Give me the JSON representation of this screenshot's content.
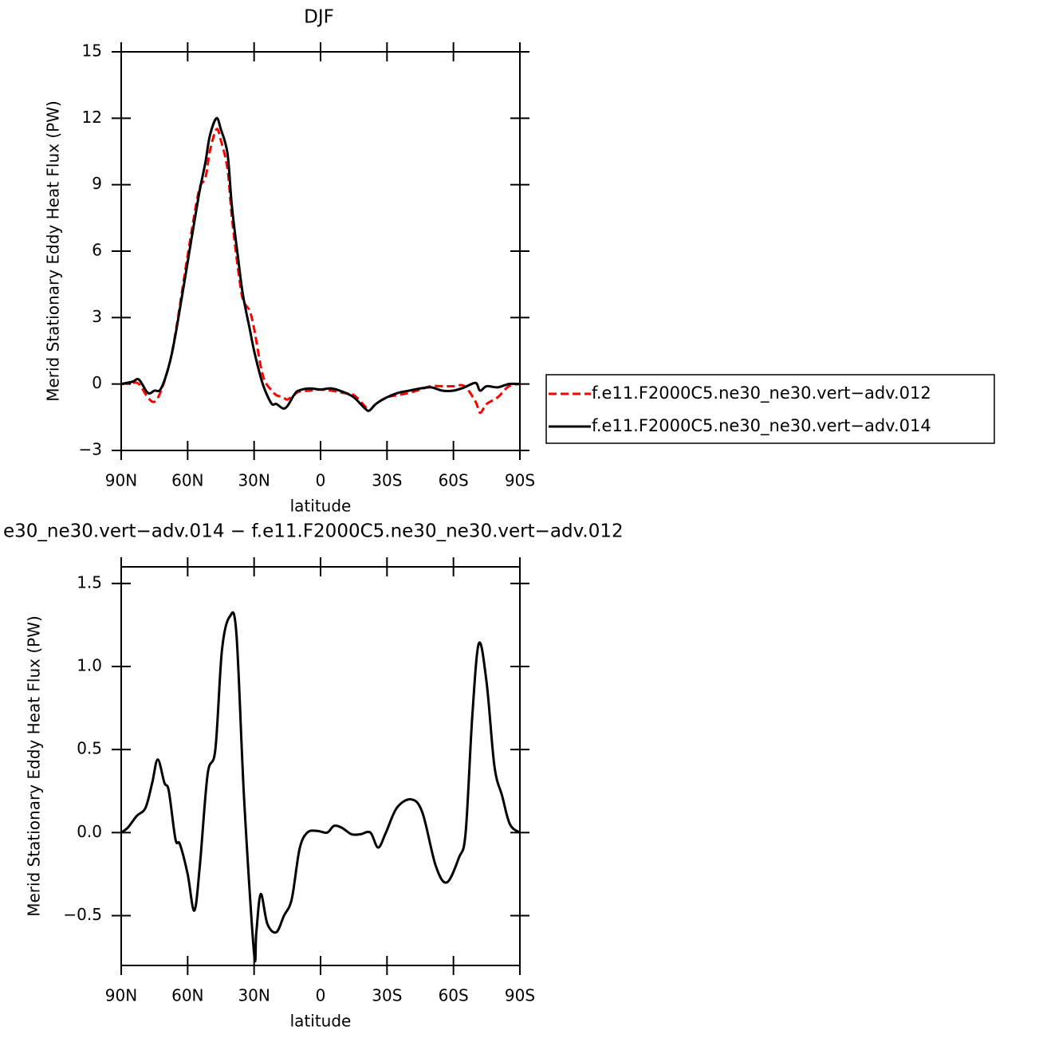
{
  "chart_data": [
    {
      "type": "line",
      "title": "DJF",
      "x_label": "latitude",
      "y_label": "Merid Stationary Eddy Heat Flux (PW)",
      "x": [
        90,
        85,
        82,
        78,
        75,
        72,
        68,
        65,
        60,
        55,
        52,
        50,
        47,
        45,
        42,
        40,
        37,
        35,
        32,
        30,
        27,
        25,
        22,
        20,
        17,
        15,
        12,
        10,
        5,
        0,
        -5,
        -10,
        -15,
        -20,
        -22,
        -25,
        -30,
        -35,
        -40,
        -45,
        -50,
        -55,
        -60,
        -65,
        -70,
        -72,
        -75,
        -80,
        -85,
        -90
      ],
      "series": [
        {
          "name": "f.e11.F2000C5.ne30_ne30.vert−adv.012",
          "color": "#ff0000",
          "dash": true,
          "values": [
            0,
            0.05,
            0.0,
            -0.6,
            -0.8,
            -0.3,
            1.0,
            2.6,
            5.8,
            8.7,
            9.3,
            10.5,
            11.5,
            11.0,
            9.7,
            7.5,
            5.0,
            3.8,
            3.3,
            2.5,
            0.8,
            0.1,
            -0.3,
            -0.5,
            -0.6,
            -0.7,
            -0.5,
            -0.35,
            -0.3,
            -0.25,
            -0.3,
            -0.4,
            -0.5,
            -1.0,
            -1.2,
            -0.9,
            -0.6,
            -0.5,
            -0.4,
            -0.25,
            -0.1,
            -0.1,
            -0.1,
            -0.1,
            -0.8,
            -1.3,
            -0.9,
            -0.6,
            -0.1,
            0
          ]
        },
        {
          "name": "f.e11.F2000C5.ne30_ne30.vert−adv.014",
          "color": "#000000",
          "dash": false,
          "values": [
            0,
            0.1,
            0.2,
            -0.4,
            -0.3,
            -0.2,
            1.0,
            2.5,
            5.5,
            8.5,
            10.0,
            11.2,
            12.0,
            11.5,
            10.4,
            8.0,
            5.5,
            4.0,
            2.5,
            1.5,
            0.3,
            -0.3,
            -0.9,
            -0.9,
            -1.1,
            -1.0,
            -0.5,
            -0.3,
            -0.2,
            -0.25,
            -0.2,
            -0.35,
            -0.6,
            -1.1,
            -1.2,
            -0.9,
            -0.6,
            -0.4,
            -0.3,
            -0.2,
            -0.15,
            -0.3,
            -0.3,
            -0.15,
            0.05,
            -0.3,
            -0.1,
            -0.15,
            0,
            0
          ]
        }
      ],
      "xlim": [
        90,
        -90
      ],
      "xticks": [
        {
          "value": 90,
          "label": "90N"
        },
        {
          "value": 60,
          "label": "60N"
        },
        {
          "value": 30,
          "label": "30N"
        },
        0,
        {
          "value": -30,
          "label": "30S"
        },
        {
          "value": -60,
          "label": "60S"
        },
        {
          "value": -90,
          "label": "90S"
        }
      ],
      "ylim": [
        -3,
        15
      ],
      "yticks": [
        {
          "value": -3,
          "label": "−3"
        },
        0,
        3,
        6,
        9,
        12,
        15
      ],
      "legend": "right"
    },
    {
      "type": "line",
      "title": "e30_ne30.vert−adv.014 − f.e11.F2000C5.ne30_ne30.vert−adv.012",
      "x_label": "latitude",
      "y_label": "Merid Stationary Eddy Heat Flux (PW)",
      "x": [
        90,
        87,
        83,
        79,
        76,
        73.5,
        70.5,
        68.5,
        65.5,
        63.5,
        60,
        57,
        54.5,
        51,
        47.5,
        44.5,
        41,
        38,
        34.5,
        30,
        29,
        27,
        24,
        20,
        16.5,
        13,
        9.5,
        6,
        1.5,
        -3,
        -6,
        -9.5,
        -14,
        -18,
        -22.5,
        -26,
        -29.5,
        -34.5,
        -41,
        -46,
        -52,
        -57,
        -62.5,
        -65.5,
        -68.5,
        -71.5,
        -75,
        -78.5,
        -82,
        -85.5,
        -90
      ],
      "values": [
        0,
        0.03,
        0.1,
        0.15,
        0.3,
        0.44,
        0.3,
        0.25,
        -0.04,
        -0.07,
        -0.25,
        -0.47,
        -0.2,
        0.35,
        0.5,
        1.1,
        1.3,
        1.2,
        0.2,
        -0.73,
        -0.6,
        -0.37,
        -0.55,
        -0.6,
        -0.5,
        -0.4,
        -0.1,
        0,
        0.01,
        0.0,
        0.04,
        0.03,
        -0.01,
        -0.01,
        0,
        -0.09,
        0.0,
        0.15,
        0.2,
        0.12,
        -0.2,
        -0.3,
        -0.15,
        0.0,
        0.7,
        1.14,
        0.9,
        0.4,
        0.22,
        0.05,
        0
      ],
      "color": "#000000",
      "xlim": [
        90,
        -90
      ],
      "xticks": [
        {
          "value": 90,
          "label": "90N"
        },
        {
          "value": 60,
          "label": "60N"
        },
        {
          "value": 30,
          "label": "30N"
        },
        0,
        {
          "value": -30,
          "label": "30S"
        },
        {
          "value": -60,
          "label": "60S"
        },
        {
          "value": -90,
          "label": "90S"
        }
      ],
      "ylim": [
        -0.8,
        1.6
      ],
      "yticks": [
        {
          "value": -0.5,
          "label": "−0.5"
        },
        {
          "value": 0,
          "label": "0.0"
        },
        0.5,
        {
          "value": 1,
          "label": "1.0"
        },
        1.5
      ]
    }
  ]
}
